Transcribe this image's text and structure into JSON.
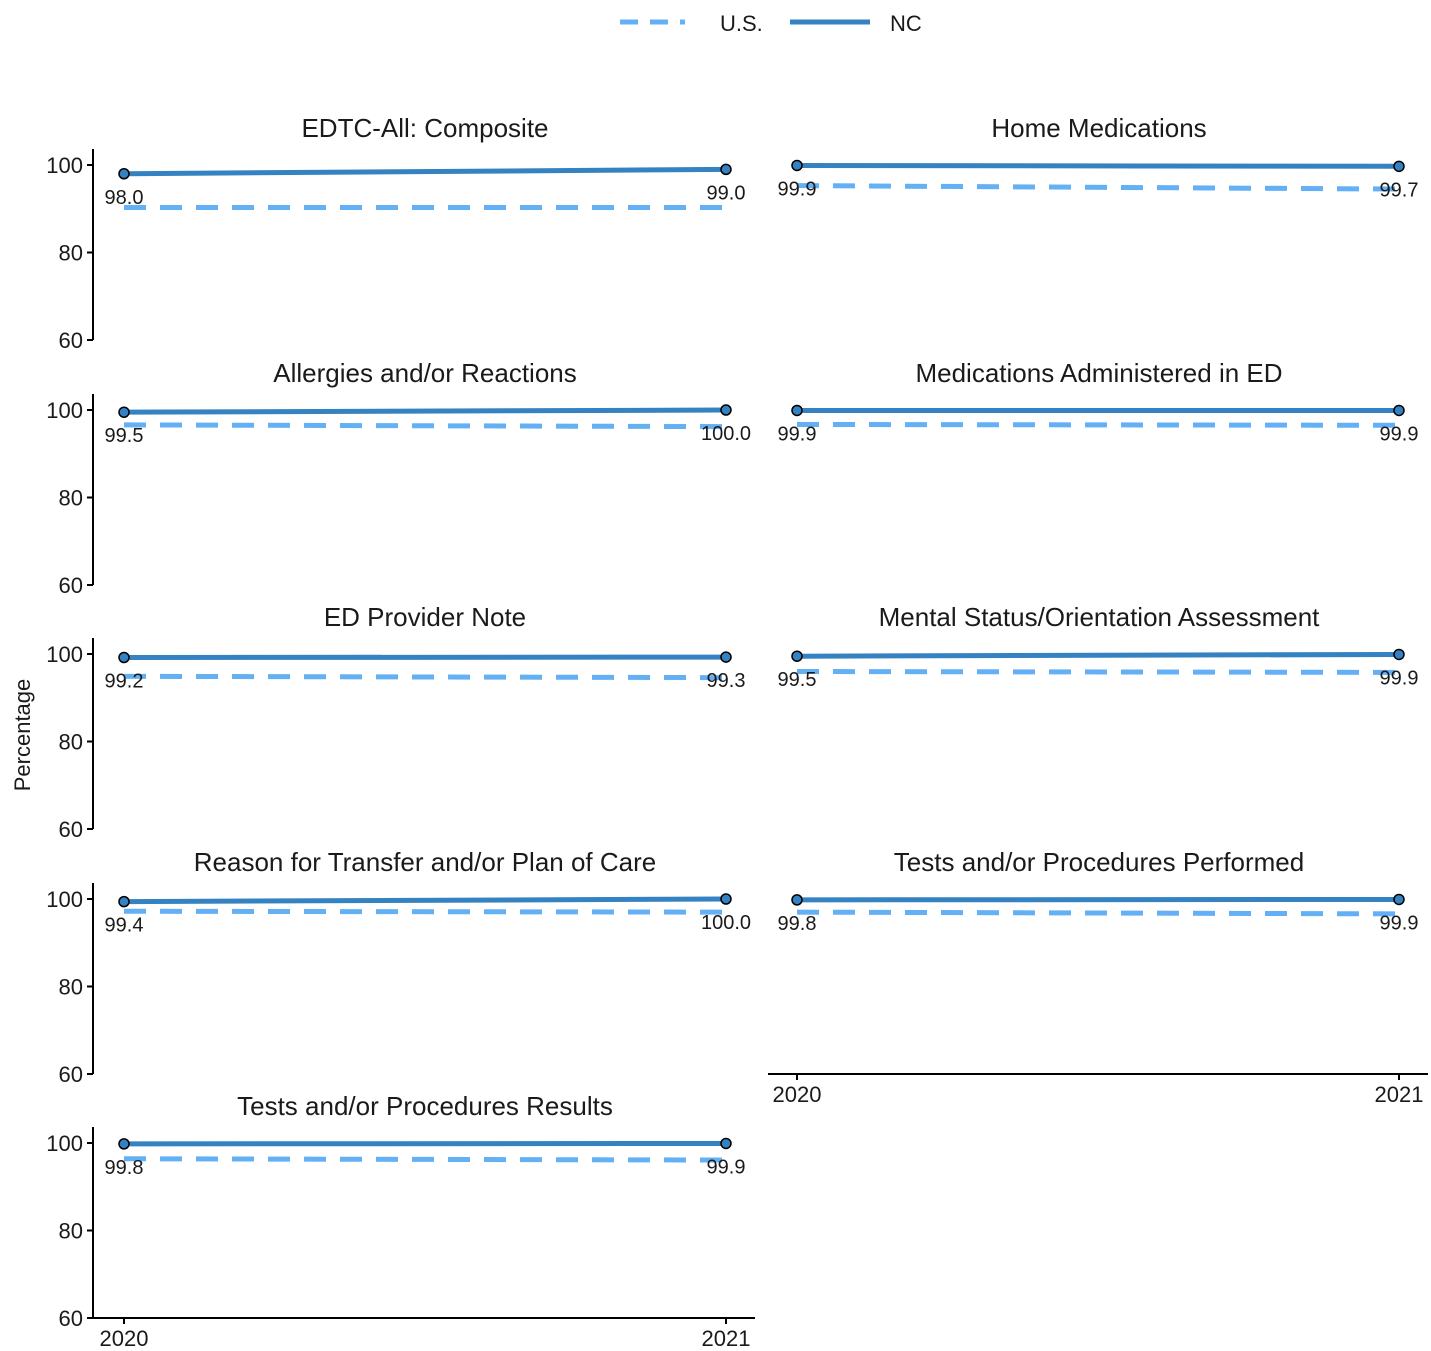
{
  "legend": {
    "position": "top",
    "items": [
      {
        "label": "U.S.",
        "color": "#63b0f5",
        "style": "dashed"
      },
      {
        "label": "NC",
        "color": "#3482c1",
        "style": "solid"
      }
    ]
  },
  "ylabel": "Percentage",
  "chart_data": [
    {
      "type": "line",
      "title": "EDTC-All: Composite",
      "x": [
        "2020",
        "2021"
      ],
      "ylim": [
        60,
        100
      ],
      "yticks": [
        60,
        80,
        100
      ],
      "series": [
        {
          "name": "NC",
          "values": [
            98.0,
            99.0
          ],
          "labels": [
            "98.0",
            "99.0"
          ]
        },
        {
          "name": "U.S.",
          "values": [
            90.3,
            90.3
          ]
        }
      ]
    },
    {
      "type": "line",
      "title": "Home Medications",
      "x": [
        "2020",
        "2021"
      ],
      "ylim": [
        60,
        100
      ],
      "yticks": [
        60,
        80,
        100
      ],
      "series": [
        {
          "name": "NC",
          "values": [
            99.9,
            99.7
          ],
          "labels": [
            "99.9",
            "99.7"
          ]
        },
        {
          "name": "U.S.",
          "values": [
            95.3,
            94.5
          ]
        }
      ]
    },
    {
      "type": "line",
      "title": "Allergies and/or Reactions",
      "x": [
        "2020",
        "2021"
      ],
      "ylim": [
        60,
        100
      ],
      "yticks": [
        60,
        80,
        100
      ],
      "series": [
        {
          "name": "NC",
          "values": [
            99.5,
            100.0
          ],
          "labels": [
            "99.5",
            "100.0"
          ]
        },
        {
          "name": "U.S.",
          "values": [
            96.6,
            96.2
          ]
        }
      ]
    },
    {
      "type": "line",
      "title": "Medications Administered in ED",
      "x": [
        "2020",
        "2021"
      ],
      "ylim": [
        60,
        100
      ],
      "yticks": [
        60,
        80,
        100
      ],
      "series": [
        {
          "name": "NC",
          "values": [
            99.9,
            99.9
          ],
          "labels": [
            "99.9",
            "99.9"
          ]
        },
        {
          "name": "U.S.",
          "values": [
            96.7,
            96.5
          ]
        }
      ]
    },
    {
      "type": "line",
      "title": "ED Provider Note",
      "x": [
        "2020",
        "2021"
      ],
      "ylim": [
        60,
        100
      ],
      "yticks": [
        60,
        80,
        100
      ],
      "series": [
        {
          "name": "NC",
          "values": [
            99.2,
            99.3
          ],
          "labels": [
            "99.2",
            "99.3"
          ]
        },
        {
          "name": "U.S.",
          "values": [
            94.9,
            94.6
          ]
        }
      ]
    },
    {
      "type": "line",
      "title": "Mental Status/Orientation Assessment",
      "x": [
        "2020",
        "2021"
      ],
      "ylim": [
        60,
        100
      ],
      "yticks": [
        60,
        80,
        100
      ],
      "series": [
        {
          "name": "NC",
          "values": [
            99.5,
            99.9
          ],
          "labels": [
            "99.5",
            "99.9"
          ]
        },
        {
          "name": "U.S.",
          "values": [
            96.0,
            95.8
          ]
        }
      ]
    },
    {
      "type": "line",
      "title": "Reason for Transfer and/or Plan of Care",
      "x": [
        "2020",
        "2021"
      ],
      "ylim": [
        60,
        100
      ],
      "yticks": [
        60,
        80,
        100
      ],
      "series": [
        {
          "name": "NC",
          "values": [
            99.4,
            100.0
          ],
          "labels": [
            "99.4",
            "100.0"
          ]
        },
        {
          "name": "U.S.",
          "values": [
            97.2,
            97.0
          ]
        }
      ]
    },
    {
      "type": "line",
      "title": "Tests and/or Procedures Performed",
      "x": [
        "2020",
        "2021"
      ],
      "ylim": [
        60,
        100
      ],
      "yticks": [
        60,
        80,
        100
      ],
      "series": [
        {
          "name": "NC",
          "values": [
            99.8,
            99.9
          ],
          "labels": [
            "99.8",
            "99.9"
          ]
        },
        {
          "name": "U.S.",
          "values": [
            97.0,
            96.6
          ]
        }
      ]
    },
    {
      "type": "line",
      "title": "Tests and/or Procedures Results",
      "x": [
        "2020",
        "2021"
      ],
      "ylim": [
        60,
        100
      ],
      "yticks": [
        60,
        80,
        100
      ],
      "series": [
        {
          "name": "NC",
          "values": [
            99.8,
            99.9
          ],
          "labels": [
            "99.8",
            "99.9"
          ]
        },
        {
          "name": "U.S.",
          "values": [
            96.4,
            96.1
          ]
        }
      ]
    }
  ]
}
